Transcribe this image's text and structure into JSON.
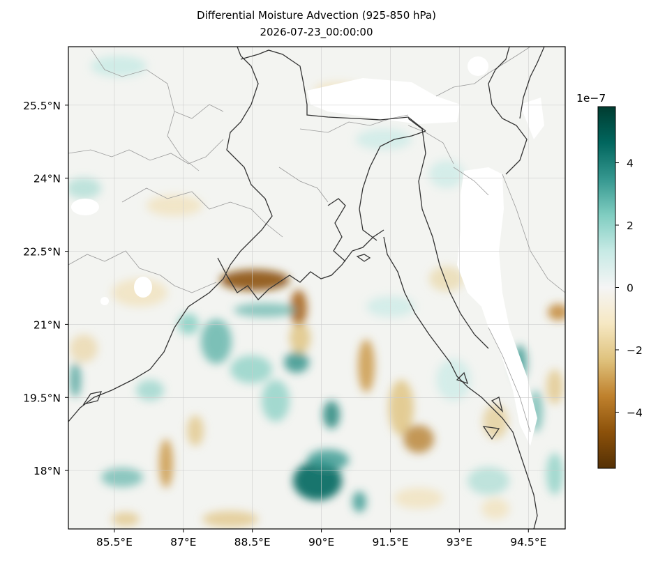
{
  "title": {
    "line1": "Differential Moisture Advection (925-850 hPa)",
    "line2": "2026-07-23_00:00:00"
  },
  "map": {
    "extent": {
      "lon": [
        84.5,
        95.3
      ],
      "lat": [
        16.8,
        26.7
      ]
    },
    "lon_ticks": [
      {
        "value": 85.5,
        "label": "85.5°E"
      },
      {
        "value": 87,
        "label": "87°E"
      },
      {
        "value": 88.5,
        "label": "88.5°E"
      },
      {
        "value": 90,
        "label": "90°E"
      },
      {
        "value": 91.5,
        "label": "91.5°E"
      },
      {
        "value": 93,
        "label": "93°E"
      },
      {
        "value": 94.5,
        "label": "94.5°E"
      }
    ],
    "lat_ticks": [
      {
        "value": 25.5,
        "label": "25.5°N"
      },
      {
        "value": 24,
        "label": "24°N"
      },
      {
        "value": 22.5,
        "label": "22.5°N"
      },
      {
        "value": 21,
        "label": "21°N"
      },
      {
        "value": 19.5,
        "label": "19.5°N"
      },
      {
        "value": 18,
        "label": "18°N"
      }
    ],
    "gridlines": true,
    "colormap": "BrBG",
    "colors": {
      "coast": "#333333",
      "borders": "#999999",
      "grid": "#cccccc"
    }
  },
  "colorbar": {
    "exponent_label": "1e−7",
    "range": [
      -5.8,
      5.8
    ],
    "ticks": [
      {
        "value": 4,
        "label": "4"
      },
      {
        "value": 2,
        "label": "2"
      },
      {
        "value": 0,
        "label": "0"
      },
      {
        "value": -2,
        "label": "−2"
      },
      {
        "value": -4,
        "label": "−4"
      }
    ]
  }
}
